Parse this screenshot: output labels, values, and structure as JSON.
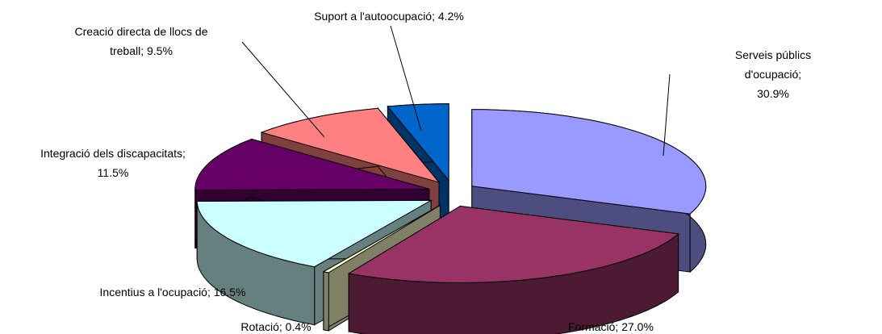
{
  "chart_data": {
    "type": "pie3d",
    "values": [
      30.9,
      27.0,
      0.4,
      16.5,
      11.5,
      9.5,
      4.2
    ],
    "value_labels": [
      "Serveis públics d'ocupació;\n30.9%",
      "Formació; 27.0%",
      "Rotació; 0.4%",
      "Incentius a l'ocupació; 16.5%",
      "Integració dels discapacitats;\n11.5%",
      "Creació directa de llocs de\ntreball; 9.5%",
      "Suport a l'autoocupació; 4.2%"
    ],
    "colors": [
      "#9999ff",
      "#993366",
      "#ffffcc",
      "#ccffff",
      "#660066",
      "#ff8080",
      "#0066cc"
    ]
  }
}
